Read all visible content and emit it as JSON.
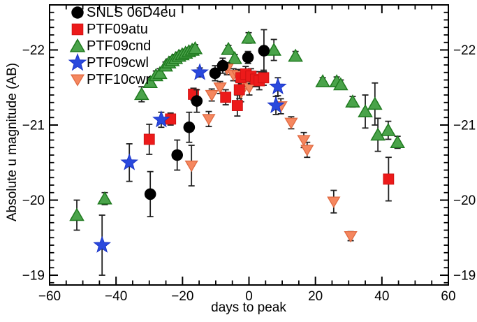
{
  "figure": {
    "xlabel": "days to peak",
    "ylabel": "Absolute u magnitude (AB)",
    "background": "#ffffff",
    "frame_color": "#000000"
  },
  "legend": {
    "position": "top-left",
    "items": [
      {
        "label": "SNLS 06D4eu",
        "marker": "circle",
        "color": "#000000"
      },
      {
        "label": "PTF09atu",
        "marker": "square",
        "color": "#ec1a1a"
      },
      {
        "label": "PTF09cnd",
        "marker": "triangle-up",
        "color": "#4aa34a"
      },
      {
        "label": "PTF09cwl",
        "marker": "star",
        "color": "#2a49dd"
      },
      {
        "label": "PTF10cwr",
        "marker": "triangle-down",
        "color": "#f5875f"
      }
    ]
  },
  "chart_data": {
    "type": "scatter",
    "title": "",
    "xlabel": "days to peak",
    "ylabel": "Absolute u magnitude (AB)",
    "xlim": [
      -60,
      60
    ],
    "ylim": [
      -22.6,
      -18.87
    ],
    "y_axis_inverted": true,
    "grid": false,
    "error_color": "#222222",
    "xticks": {
      "major": [
        -60,
        -40,
        -20,
        0,
        20,
        40,
        60
      ],
      "labels": [
        "−60",
        "−40",
        "−20",
        "0",
        "20",
        "40",
        "60"
      ],
      "minor_step": 5
    },
    "yticks": {
      "major": [
        -22,
        -21,
        -20,
        -19
      ],
      "labels": [
        "−22",
        "−21",
        "−20",
        "−19"
      ],
      "minor_step": 0.1
    },
    "point_format": [
      "days_to_peak",
      "abs_u_magnitude_AB",
      "mag_error"
    ],
    "series": [
      {
        "name": "PTF09cnd",
        "marker": "triangle-up",
        "fill": "#4aa34a",
        "edge": "#1f7a1f",
        "points": [
          [
            -51.8,
            -19.8,
            0.2
          ],
          [
            -43.4,
            -20.02,
            0.08
          ],
          [
            -32.3,
            -21.41,
            0.1
          ],
          [
            -29.7,
            -21.57,
            0.06
          ],
          [
            -28.0,
            -21.66,
            0.06
          ],
          [
            -26.8,
            -21.69,
            0.06
          ],
          [
            -25.1,
            -21.79,
            0.05
          ],
          [
            -24.1,
            -21.83,
            0.05
          ],
          [
            -23.1,
            -21.86,
            0.05
          ],
          [
            -22.1,
            -21.89,
            0.05
          ],
          [
            -21.1,
            -21.92,
            0.05
          ],
          [
            -20.1,
            -21.94,
            0.05
          ],
          [
            -19.1,
            -21.96,
            0.05
          ],
          [
            -18.1,
            -21.98,
            0.05
          ],
          [
            -17.1,
            -22.0,
            0.05
          ],
          [
            -16.2,
            -22.02,
            0.05
          ],
          [
            -6.2,
            -22.01,
            0.05
          ],
          [
            -4.3,
            -21.89,
            0.05
          ],
          [
            -0.1,
            -22.16,
            0.07
          ],
          [
            7.5,
            -22.0,
            0.14
          ],
          [
            14.0,
            -21.92,
            0.06
          ],
          [
            22.2,
            -21.58,
            0.05
          ],
          [
            26.4,
            -21.58,
            0.06
          ],
          [
            27.6,
            -21.54,
            0.06
          ],
          [
            31.2,
            -21.31,
            0.07
          ],
          [
            35.0,
            -21.18,
            0.22
          ],
          [
            37.9,
            -21.28,
            0.28
          ],
          [
            38.8,
            -20.87,
            0.22
          ],
          [
            41.9,
            -20.93,
            0.12
          ],
          [
            44.7,
            -20.77,
            0.08
          ]
        ]
      },
      {
        "name": "PTF10cwr",
        "marker": "triangle-down",
        "fill": "#f5875f",
        "edge": "#e06a42",
        "points": [
          [
            -17.3,
            -20.46,
            0.27
          ],
          [
            -12.1,
            -21.08,
            0.1
          ],
          [
            -11.2,
            -21.4,
            0.08
          ],
          [
            -8.7,
            -21.5,
            0.08
          ],
          [
            -6.6,
            -21.75,
            0.08
          ],
          [
            -4.7,
            -21.67,
            0.08
          ],
          [
            -3.3,
            -21.66,
            0.08
          ],
          [
            -2.4,
            -21.43,
            0.12
          ],
          [
            -2.0,
            -21.59,
            0.08
          ],
          [
            0.1,
            -21.5,
            0.1
          ],
          [
            9.6,
            -21.25,
            0.1
          ],
          [
            12.7,
            -21.03,
            0.08
          ],
          [
            16.5,
            -20.8,
            0.1
          ],
          [
            17.5,
            -20.67,
            0.1
          ],
          [
            25.5,
            -19.98,
            0.15
          ],
          [
            30.6,
            -19.52,
            0.06
          ]
        ]
      },
      {
        "name": "PTF09atu",
        "marker": "square",
        "fill": "#ec1a1a",
        "edge": "#c91111",
        "points": [
          [
            -30.0,
            -20.81,
            0.2
          ],
          [
            -23.6,
            -21.08,
            0.08
          ],
          [
            -16.7,
            -21.41,
            0.08
          ],
          [
            -7.0,
            -21.37,
            0.1
          ],
          [
            -3.5,
            -21.26,
            0.14
          ],
          [
            -2.9,
            -21.47,
            0.12
          ],
          [
            -2.4,
            -21.63,
            0.1
          ],
          [
            -1.0,
            -21.68,
            0.1
          ],
          [
            0.6,
            -21.65,
            0.1
          ],
          [
            2.0,
            -21.61,
            0.1
          ],
          [
            3.1,
            -21.59,
            0.12
          ],
          [
            4.4,
            -21.63,
            0.1
          ],
          [
            42.0,
            -20.28,
            0.29
          ]
        ]
      },
      {
        "name": "PTF09cwl",
        "marker": "star",
        "fill": "#2a49dd",
        "edge": "#1b35c8",
        "points": [
          [
            -44.2,
            -19.4,
            0.4
          ],
          [
            -36.0,
            -20.5,
            0.25
          ],
          [
            -26.4,
            -21.07,
            0.1
          ],
          [
            -14.8,
            -21.7,
            0.06
          ],
          [
            8.1,
            -21.26,
            0.12
          ],
          [
            8.7,
            -21.51,
            0.12
          ]
        ]
      },
      {
        "name": "SNLS 06D4eu",
        "marker": "circle",
        "fill": "#000000",
        "edge": "#000000",
        "points": [
          [
            -29.7,
            -20.08,
            0.3
          ],
          [
            -21.6,
            -20.6,
            0.2
          ],
          [
            -18.0,
            -20.97,
            0.2
          ],
          [
            -15.7,
            -21.32,
            0.15
          ],
          [
            -10.2,
            -21.69,
            0.1
          ],
          [
            -7.9,
            -21.79,
            0.1
          ],
          [
            -0.3,
            -21.9,
            0.08
          ],
          [
            4.5,
            -21.99,
            0.28
          ]
        ]
      }
    ]
  }
}
